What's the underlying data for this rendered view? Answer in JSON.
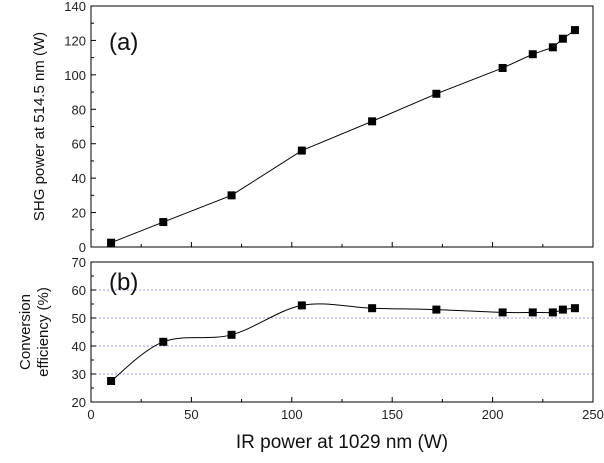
{
  "chart_data": [
    {
      "panel_label": "(a)",
      "type": "line",
      "ylabel": "SHG power at 514.5 nm (W)",
      "xlim": [
        0,
        250
      ],
      "ylim": [
        0,
        140
      ],
      "x_ticks": [
        0,
        50,
        100,
        150,
        200,
        250
      ],
      "y_ticks": [
        0,
        20,
        40,
        60,
        80,
        100,
        120,
        140
      ],
      "grid": false,
      "series": [
        {
          "x": [
            10,
            36,
            70,
            105,
            140,
            172,
            205,
            220,
            230,
            235,
            241
          ],
          "y": [
            2.5,
            14.5,
            30,
            56,
            73,
            89,
            104,
            112,
            116,
            121,
            126
          ]
        }
      ]
    },
    {
      "panel_label": "(b)",
      "type": "line",
      "ylabel_lines": [
        "Conversion",
        "efficiency (%)"
      ],
      "xlabel": "IR power at 1029 nm (W)",
      "xlim": [
        0,
        250
      ],
      "ylim": [
        20,
        70
      ],
      "x_ticks": [
        0,
        50,
        100,
        150,
        200,
        250
      ],
      "y_ticks": [
        20,
        30,
        40,
        50,
        60,
        70
      ],
      "grid": true,
      "series": [
        {
          "x": [
            10,
            36,
            70,
            105,
            140,
            172,
            205,
            220,
            230,
            235,
            241
          ],
          "y": [
            27.5,
            41.5,
            44,
            54.5,
            53.5,
            53,
            52,
            52,
            52,
            53,
            53.5
          ]
        }
      ]
    }
  ],
  "colors": {
    "axis": "#000000",
    "grid": "#9a9af0",
    "marker": "#000000",
    "line": "#000000"
  }
}
